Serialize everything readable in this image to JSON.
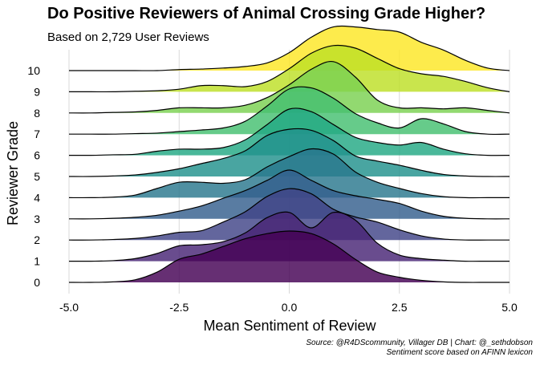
{
  "chart_data": {
    "type": "ridgeline",
    "title": "Do Positive Reviewers of Animal Crossing Grade Higher?",
    "subtitle": "Based on 2,729 User Reviews",
    "xlabel": "Mean Sentiment of Review",
    "ylabel": "Reviewer Grade",
    "xlim": [
      -5.0,
      5.0
    ],
    "x_ticks": [
      "-5.0",
      "-2.5",
      "0.0",
      "2.5",
      "5.0"
    ],
    "x_tick_values": [
      -5.0,
      -2.5,
      0.0,
      2.5,
      5.0
    ],
    "grid": "vertical major",
    "caption_line1": "Source: @R4DScommunity, Villager DB | Chart: @_sethdobson",
    "caption_line2": "Sentiment score based on AFINN lexicon",
    "colors": [
      "#440154",
      "#482475",
      "#414487",
      "#355f8d",
      "#2a788e",
      "#21918c",
      "#22a884",
      "#44bf70",
      "#7ad151",
      "#bddf26",
      "#fde725"
    ],
    "grades": [
      "0",
      "1",
      "2",
      "3",
      "4",
      "5",
      "6",
      "7",
      "8",
      "9",
      "10"
    ],
    "density_x": [
      -5,
      -4.5,
      -4,
      -3.5,
      -3,
      -2.5,
      -2,
      -1.5,
      -1,
      -0.5,
      0,
      0.5,
      1,
      1.5,
      2,
      2.5,
      3,
      3.5,
      4,
      4.5,
      5
    ],
    "series": [
      {
        "name": "0",
        "heights": [
          0,
          0,
          0.01,
          0.05,
          0.2,
          0.45,
          0.55,
          0.7,
          0.85,
          0.95,
          1.0,
          0.95,
          0.75,
          0.45,
          0.2,
          0.1,
          0.04,
          0.01,
          0,
          0,
          0
        ]
      },
      {
        "name": "1",
        "heights": [
          0,
          0,
          0.01,
          0.05,
          0.15,
          0.3,
          0.32,
          0.38,
          0.55,
          0.85,
          0.95,
          0.65,
          0.95,
          0.8,
          0.35,
          0.12,
          0.05,
          0.02,
          0,
          0,
          0
        ]
      },
      {
        "name": "2",
        "heights": [
          0,
          0,
          0.01,
          0.03,
          0.08,
          0.15,
          0.18,
          0.35,
          0.55,
          0.85,
          1.0,
          0.9,
          0.6,
          0.45,
          0.35,
          0.2,
          0.08,
          0.02,
          0,
          0,
          0
        ]
      },
      {
        "name": "3",
        "heights": [
          0,
          0,
          0.01,
          0.03,
          0.07,
          0.15,
          0.25,
          0.4,
          0.55,
          0.75,
          0.95,
          0.75,
          0.55,
          0.45,
          0.38,
          0.3,
          0.15,
          0.05,
          0.01,
          0,
          0
        ]
      },
      {
        "name": "4",
        "heights": [
          0,
          0,
          0.01,
          0.05,
          0.18,
          0.3,
          0.3,
          0.28,
          0.35,
          0.6,
          0.8,
          0.95,
          0.85,
          0.5,
          0.3,
          0.18,
          0.08,
          0.02,
          0,
          0,
          0
        ]
      },
      {
        "name": "5",
        "heights": [
          0,
          0,
          0.01,
          0.03,
          0.08,
          0.15,
          0.25,
          0.35,
          0.5,
          0.8,
          0.92,
          0.9,
          0.7,
          0.4,
          0.3,
          0.22,
          0.12,
          0.04,
          0.01,
          0,
          0
        ]
      },
      {
        "name": "6",
        "heights": [
          0,
          0,
          0.01,
          0.02,
          0.08,
          0.12,
          0.12,
          0.15,
          0.3,
          0.6,
          0.9,
          0.85,
          0.6,
          0.35,
          0.25,
          0.2,
          0.25,
          0.12,
          0.03,
          0,
          0
        ]
      },
      {
        "name": "7",
        "heights": [
          0,
          0,
          0,
          0.01,
          0.02,
          0.05,
          0.08,
          0.12,
          0.25,
          0.55,
          0.88,
          0.9,
          0.7,
          0.4,
          0.22,
          0.12,
          0.3,
          0.2,
          0.05,
          0,
          0
        ]
      },
      {
        "name": "8",
        "heights": [
          0,
          0,
          0.01,
          0.02,
          0.05,
          0.1,
          0.1,
          0.1,
          0.15,
          0.3,
          0.55,
          0.85,
          1.0,
          0.7,
          0.25,
          0.1,
          0.1,
          0.08,
          0.1,
          0.05,
          0
        ]
      },
      {
        "name": "9",
        "heights": [
          0,
          0,
          0,
          0.01,
          0.02,
          0.05,
          0.12,
          0.12,
          0.1,
          0.2,
          0.45,
          0.75,
          0.9,
          0.85,
          0.65,
          0.45,
          0.35,
          0.3,
          0.2,
          0.08,
          0
        ]
      },
      {
        "name": "10",
        "heights": [
          0,
          0,
          0,
          0,
          0,
          0.02,
          0.03,
          0.05,
          0.08,
          0.15,
          0.35,
          0.65,
          0.85,
          0.85,
          0.8,
          0.75,
          0.55,
          0.4,
          0.2,
          0.05,
          0
        ]
      }
    ]
  }
}
